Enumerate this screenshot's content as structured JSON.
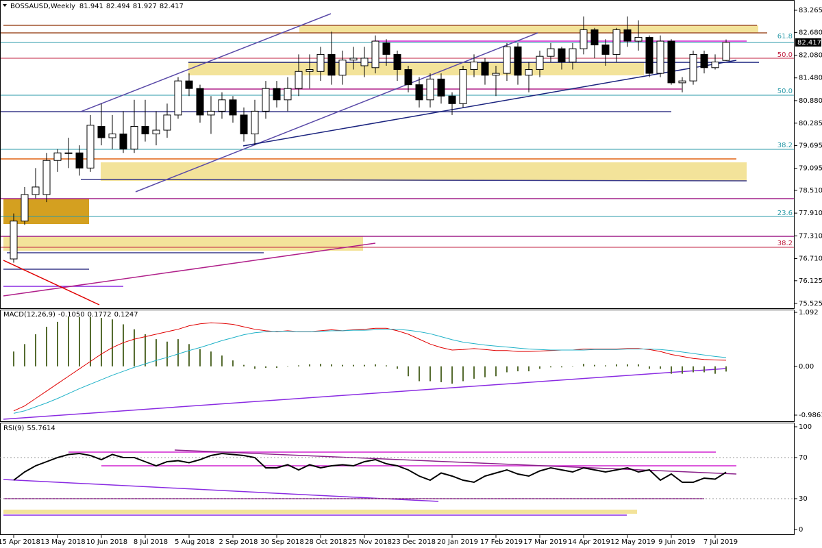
{
  "chart_data": [
    {
      "type": "candlestick",
      "title": "BOSSAUSD,Weekly",
      "fib_labels": [
        "61.8",
        "50.0",
        "50.0",
        "38.2",
        "23.6",
        "38.2"
      ],
      "categories": [
        "15 Apr 2018",
        null,
        null,
        null,
        "13 May 2018",
        null,
        null,
        null,
        "10 Jun 2018",
        null,
        null,
        null,
        "8 Jul 2018",
        null,
        null,
        null,
        "5 Aug 2018",
        null,
        null,
        null,
        "2 Sep 2018",
        null,
        null,
        null,
        "30 Sep 2018",
        null,
        null,
        null,
        "28 Oct 2018",
        null,
        null,
        null,
        "25 Nov 2018",
        null,
        null,
        null,
        "23 Dec 2018",
        null,
        null,
        null,
        "20 Jan 2019",
        null,
        null,
        null,
        "17 Feb 2019",
        null,
        null,
        null,
        "17 Mar 2019",
        null,
        null,
        null,
        "14 Apr 2019",
        null,
        null,
        null,
        "12 May 2019",
        null,
        null,
        null,
        "9 Jun 2019",
        null,
        null,
        null,
        "7 Jul 2019",
        null
      ],
      "open": [
        76.7,
        77.7,
        78.4,
        78.4,
        79.3,
        79.5,
        79.5,
        79.1,
        80.2,
        79.9,
        80.0,
        79.6,
        80.2,
        80.0,
        80.1,
        80.5,
        81.4,
        81.2,
        80.5,
        80.6,
        80.9,
        80.5,
        80.0,
        80.6,
        81.2,
        80.9,
        81.2,
        81.65,
        81.65,
        82.1,
        81.55,
        81.95,
        81.8,
        81.75,
        82.4,
        82.1,
        81.7,
        81.3,
        80.9,
        81.45,
        81.0,
        80.8,
        81.7,
        81.9,
        81.55,
        81.6,
        82.3,
        81.55,
        81.7,
        82.05,
        82.25,
        81.9,
        82.25,
        82.75,
        82.35,
        82.1,
        82.75,
        82.45,
        82.55,
        81.6,
        82.45,
        81.35,
        81.4,
        82.1,
        81.75,
        81.941
      ],
      "high": [
        77.9,
        78.6,
        79.1,
        79.5,
        79.6,
        79.9,
        79.7,
        80.5,
        80.8,
        80.5,
        80.6,
        80.9,
        80.9,
        80.6,
        80.8,
        81.5,
        81.6,
        81.3,
        81.0,
        81.1,
        81.0,
        80.7,
        80.9,
        81.4,
        81.4,
        81.5,
        82.1,
        82.1,
        82.3,
        82.7,
        82.2,
        82.3,
        82.3,
        82.6,
        82.5,
        82.2,
        81.8,
        81.5,
        81.6,
        81.6,
        81.1,
        81.8,
        82.1,
        82.0,
        81.8,
        82.4,
        82.4,
        81.9,
        82.2,
        82.4,
        82.3,
        82.4,
        83.1,
        82.8,
        82.5,
        82.8,
        83.1,
        83.0,
        82.6,
        82.6,
        82.5,
        81.5,
        82.2,
        82.2,
        82.1,
        82.494
      ],
      "low": [
        76.6,
        77.6,
        78.3,
        78.2,
        79.0,
        79.1,
        78.9,
        79.0,
        79.7,
        79.6,
        79.5,
        79.5,
        79.8,
        79.7,
        79.9,
        80.4,
        81.0,
        80.3,
        80.0,
        80.4,
        80.3,
        79.8,
        79.7,
        80.4,
        80.7,
        80.6,
        81.0,
        81.2,
        81.4,
        81.3,
        81.3,
        81.7,
        81.5,
        81.6,
        81.8,
        81.4,
        81.1,
        80.7,
        80.7,
        80.8,
        80.5,
        80.7,
        81.5,
        81.3,
        81.0,
        81.4,
        81.3,
        81.1,
        81.5,
        81.9,
        81.7,
        81.7,
        82.1,
        82.0,
        81.8,
        81.9,
        82.3,
        82.2,
        81.5,
        81.5,
        81.3,
        81.1,
        81.3,
        81.6,
        81.7,
        81.927
      ],
      "close": [
        77.7,
        78.4,
        78.6,
        79.3,
        79.5,
        79.5,
        79.1,
        80.23,
        79.9,
        80.0,
        79.6,
        80.2,
        80.0,
        80.1,
        80.5,
        81.4,
        81.2,
        80.5,
        80.6,
        80.9,
        80.5,
        80.0,
        80.6,
        81.2,
        80.9,
        81.2,
        81.65,
        81.7,
        82.1,
        81.55,
        81.95,
        82.0,
        82.0,
        82.45,
        82.1,
        81.7,
        81.3,
        80.9,
        81.45,
        81.0,
        80.8,
        81.7,
        81.9,
        81.55,
        81.6,
        82.3,
        81.55,
        81.7,
        82.05,
        82.25,
        81.9,
        82.25,
        82.75,
        82.35,
        82.1,
        82.75,
        82.45,
        82.55,
        81.6,
        82.45,
        81.35,
        81.4,
        82.1,
        81.75,
        81.9,
        82.417
      ],
      "ylim": [
        75.525,
        83.265
      ],
      "yticks": [
        83.265,
        {
          "value": 82.68,
          "label": "82.680"
        },
        {
          "value": 82.08,
          "label": "82.080"
        },
        {
          "value": 81.48,
          "label": "81.480"
        },
        {
          "value": 80.88,
          "label": "80.880"
        },
        80.285,
        79.695,
        79.095,
        {
          "value": 78.51,
          "label": "78.510"
        },
        {
          "value": 77.91,
          "label": "77.910"
        },
        {
          "value": 77.31,
          "label": "77.310"
        },
        {
          "value": 76.71,
          "label": "76.710"
        },
        76.125,
        75.525
      ]
    },
    {
      "type": "macd",
      "title": "MACD(12,26,9)",
      "readout": [
        "-0.1050",
        "0.1772",
        "0.1247"
      ],
      "histogram": [
        0.3,
        0.45,
        0.65,
        0.8,
        0.9,
        1.0,
        1.0,
        1.0,
        0.98,
        0.95,
        0.85,
        0.75,
        0.65,
        0.55,
        0.5,
        0.55,
        0.45,
        0.35,
        0.3,
        0.22,
        0.12,
        0.03,
        -0.05,
        -0.03,
        -0.03,
        0.0,
        0.02,
        0.04,
        0.05,
        0.04,
        0.03,
        0.03,
        0.03,
        0.04,
        0.02,
        -0.05,
        -0.2,
        -0.3,
        -0.3,
        -0.32,
        -0.35,
        -0.3,
        -0.25,
        -0.22,
        -0.2,
        -0.12,
        -0.1,
        -0.1,
        -0.05,
        -0.02,
        -0.02,
        0.0,
        0.05,
        0.03,
        0.02,
        0.04,
        0.04,
        0.04,
        -0.05,
        -0.05,
        -0.15,
        -0.15,
        -0.12,
        -0.12,
        -0.15,
        -0.105
      ],
      "histogram_color": "#556b2f",
      "series": [
        {
          "color": "#e00000",
          "values": [
            -0.9,
            -0.8,
            -0.65,
            -0.5,
            -0.35,
            -0.2,
            -0.05,
            0.1,
            0.25,
            0.38,
            0.48,
            0.55,
            0.6,
            0.65,
            0.7,
            0.75,
            0.82,
            0.86,
            0.88,
            0.87,
            0.85,
            0.8,
            0.75,
            0.72,
            0.7,
            0.72,
            0.7,
            0.7,
            0.72,
            0.74,
            0.72,
            0.74,
            0.75,
            0.77,
            0.77,
            0.72,
            0.65,
            0.55,
            0.45,
            0.38,
            0.33,
            0.34,
            0.36,
            0.34,
            0.32,
            0.32,
            0.3,
            0.3,
            0.31,
            0.32,
            0.33,
            0.33,
            0.35,
            0.35,
            0.35,
            0.35,
            0.36,
            0.36,
            0.34,
            0.3,
            0.24,
            0.2,
            0.16,
            0.14,
            0.13,
            0.1247
          ]
        },
        {
          "color": "#20b2c8",
          "values": [
            -0.95,
            -0.9,
            -0.82,
            -0.74,
            -0.65,
            -0.55,
            -0.45,
            -0.36,
            -0.27,
            -0.18,
            -0.1,
            -0.02,
            0.05,
            0.12,
            0.18,
            0.25,
            0.32,
            0.38,
            0.45,
            0.52,
            0.58,
            0.64,
            0.68,
            0.7,
            0.71,
            0.71,
            0.7,
            0.7,
            0.71,
            0.72,
            0.72,
            0.73,
            0.73,
            0.74,
            0.75,
            0.75,
            0.73,
            0.7,
            0.66,
            0.6,
            0.54,
            0.49,
            0.46,
            0.43,
            0.41,
            0.39,
            0.37,
            0.35,
            0.34,
            0.33,
            0.33,
            0.33,
            0.33,
            0.34,
            0.34,
            0.34,
            0.35,
            0.35,
            0.35,
            0.34,
            0.32,
            0.29,
            0.26,
            0.23,
            0.2,
            0.1772
          ]
        }
      ],
      "ylim": [
        -0.9861,
        1.092
      ],
      "yticks": [
        1.092,
        {
          "value": 0,
          "label": "0.00"
        },
        -0.9861
      ]
    },
    {
      "type": "rsi",
      "title": "RSI(9)",
      "color": "#000000",
      "values": [
        48,
        56,
        62,
        66,
        70,
        73,
        74,
        72,
        68,
        73,
        70,
        70,
        66,
        62,
        66,
        67,
        65,
        68,
        72,
        74,
        73,
        72,
        70,
        60,
        60,
        63,
        58,
        63,
        60,
        62,
        63,
        62,
        66,
        68,
        64,
        62,
        58,
        52,
        48,
        55,
        52,
        48,
        46,
        52,
        55,
        58,
        54,
        52,
        57,
        60,
        58,
        56,
        60,
        58,
        56,
        58,
        60,
        56,
        58,
        48,
        54,
        46,
        46,
        50,
        49,
        55.7614
      ],
      "ylim": [
        0,
        100
      ],
      "yticks": [
        100,
        70,
        30,
        0
      ],
      "grid": true
    }
  ]
}
